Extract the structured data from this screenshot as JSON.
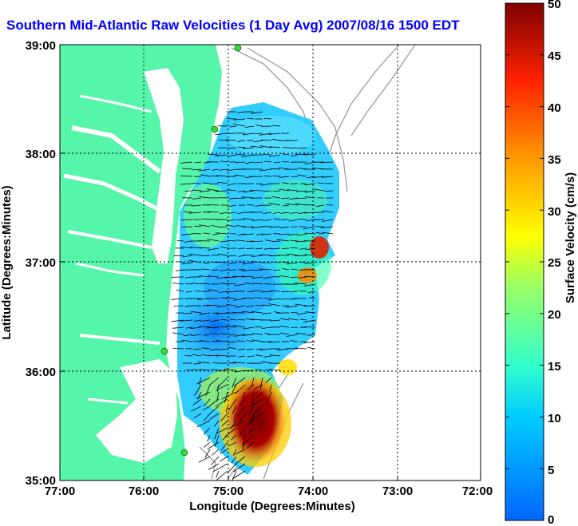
{
  "title": "Southern Mid-Atlantic Raw Velocities (1 Day Avg) 2007/08/16 1500 EDT",
  "map": {
    "xlabel": "Longitude (Degrees:Minutes)",
    "ylabel": "Latitude (Degrees:Minutes)",
    "x_ticks": [
      "77:00",
      "76:00",
      "75:00",
      "74:00",
      "73:00",
      "72:00"
    ],
    "y_ticks": [
      "39:00",
      "38:00",
      "37:00",
      "36:00",
      "35:00"
    ],
    "colors": {
      "land": "#55f5aa",
      "water": "#ffffff",
      "bathymetry": "#9a9a9a",
      "grid": "#000000"
    }
  },
  "colorbar": {
    "label": "Surface Velocity (cm/s)",
    "ticks": [
      "50",
      "45",
      "40",
      "35",
      "30",
      "25",
      "20",
      "15",
      "10",
      "5",
      "0"
    ],
    "range": [
      0,
      50
    ],
    "colormap": "jet"
  },
  "stations": [
    "station-1",
    "station-2",
    "station-3",
    "station-4"
  ]
}
